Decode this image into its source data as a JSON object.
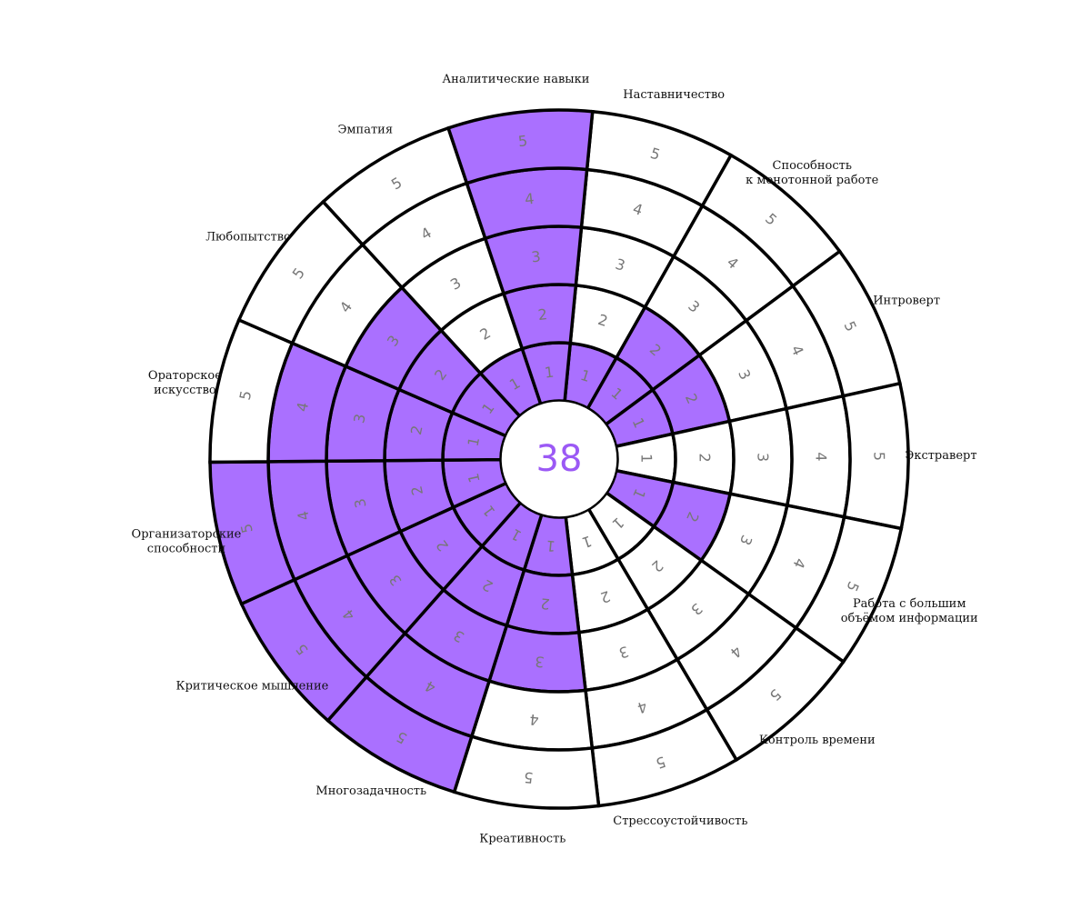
{
  "chart_data": {
    "type": "radial-bar",
    "total": "38",
    "levels": [
      1,
      2,
      3,
      4,
      5
    ],
    "colors": {
      "filled": "#aa70ff",
      "empty": "#ffffff",
      "stroke": "#000000",
      "segment_label": "#777777",
      "total": "#9b59f5"
    },
    "categories": [
      {
        "label": [
          "Наставничество"
        ],
        "value": 1
      },
      {
        "label": [
          "Способность",
          "к монотонной работе"
        ],
        "value": 2
      },
      {
        "label": [
          "Интроверт"
        ],
        "value": 2
      },
      {
        "label": [
          "Экстраверт"
        ],
        "value": 0
      },
      {
        "label": [
          "Работа с большим",
          "объёмом информации"
        ],
        "value": 2
      },
      {
        "label": [
          "Контроль времени"
        ],
        "value": 0
      },
      {
        "label": [
          "Стрессоустойчивость"
        ],
        "value": 0
      },
      {
        "label": [
          "Креативность"
        ],
        "value": 3
      },
      {
        "label": [
          "Многозадачность"
        ],
        "value": 5
      },
      {
        "label": [
          "Критическое мышление"
        ],
        "value": 5
      },
      {
        "label": [
          "Организаторские",
          "способности"
        ],
        "value": 5
      },
      {
        "label": [
          "Ораторское",
          "искусство"
        ],
        "value": 4
      },
      {
        "label": [
          "Любопытство"
        ],
        "value": 3
      },
      {
        "label": [
          "Эмпатия"
        ],
        "value": 1
      },
      {
        "label": [
          "Аналитические навыки"
        ],
        "value": 5
      }
    ]
  }
}
